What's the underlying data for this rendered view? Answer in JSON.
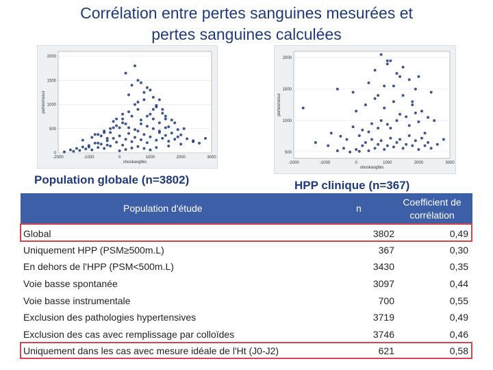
{
  "title_line1": "Corrélation entre pertes sanguines mesurées et",
  "title_line2": "pertes sanguines calculées",
  "captions": {
    "left": "Population globale (n=3802)",
    "right": "HPP clinique (n=367)"
  },
  "table": {
    "headers": {
      "population": "Population d'étude",
      "n": "n",
      "coef_line1": "Coefficient de",
      "coef_line2": "corrélation"
    },
    "rows": [
      {
        "label": "Global",
        "n": "3802",
        "coef": "0,49"
      },
      {
        "label": "Uniquement HPP (PSM≥500m.L)",
        "n": "367",
        "coef": "0,30"
      },
      {
        "label": "En dehors de l'HPP (PSM<500m.L)",
        "n": "3430",
        "coef": "0,35"
      },
      {
        "label": "Voie basse spontanée",
        "n": "3097",
        "coef": "0,44"
      },
      {
        "label": "Voie basse instrumentale",
        "n": "700",
        "coef": "0,55"
      },
      {
        "label": "Exclusion des pathologies hypertensives",
        "n": "3719",
        "coef": "0,49"
      },
      {
        "label": "Exclusion des cas avec remplissage par colloïdes",
        "n": "3746",
        "coef": "0,46"
      },
      {
        "label": "Uniquement dans les cas avec mesure idéale de l'Ht (J0-J2)",
        "n": "621",
        "coef": "0,58"
      }
    ]
  },
  "chart_data": [
    {
      "type": "scatter",
      "title": "",
      "xlabel": "shookavglbis",
      "ylabel": "pertesmesur",
      "xlim": [
        -2000,
        3000
      ],
      "ylim": [
        0,
        2100
      ],
      "xticks": [
        "-2000",
        "-1000",
        "0",
        "1000",
        "2000",
        "3000"
      ],
      "yticks": [
        "0",
        "500",
        "1000",
        "1500",
        "2000"
      ],
      "point_color": "#1f3a7a",
      "x": [
        -1800,
        -1600,
        -1500,
        -1400,
        -1300,
        -1200,
        -1100,
        -1000,
        -900,
        -800,
        -700,
        -600,
        -500,
        -400,
        -300,
        -200,
        -100,
        0,
        100,
        200,
        300,
        400,
        500,
        600,
        700,
        800,
        900,
        1000,
        1100,
        1200,
        1300,
        1400,
        1500,
        1600,
        1700,
        1800,
        1900,
        2000,
        2200,
        2400,
        2600,
        -1200,
        -900,
        -700,
        -500,
        -300,
        -100,
        100,
        300,
        500,
        700,
        900,
        1100,
        1300,
        1500,
        -800,
        -500,
        -200,
        100,
        400,
        700,
        1000,
        1300,
        1600,
        1900,
        -400,
        0,
        300,
        600,
        900,
        1200,
        1500,
        1800,
        2100,
        -300,
        200,
        500,
        800,
        1100,
        1400,
        1700,
        -100,
        300,
        600,
        900,
        1200,
        1500,
        400,
        800,
        1100,
        1400,
        600,
        1000,
        1300,
        200,
        700,
        -600,
        -200,
        100,
        500,
        -1000,
        -700,
        -400,
        0,
        200,
        400,
        600,
        800,
        1000,
        1200,
        1600,
        2000,
        2400,
        2800
      ],
      "y": [
        20,
        60,
        30,
        90,
        50,
        120,
        80,
        150,
        60,
        200,
        110,
        180,
        90,
        250,
        140,
        300,
        220,
        350,
        160,
        280,
        400,
        230,
        320,
        450,
        270,
        380,
        210,
        330,
        500,
        260,
        420,
        300,
        360,
        240,
        410,
        280,
        330,
        370,
        290,
        250,
        200,
        260,
        320,
        380,
        450,
        500,
        560,
        620,
        520,
        480,
        600,
        550,
        700,
        450,
        520,
        380,
        420,
        650,
        700,
        760,
        680,
        800,
        620,
        540,
        480,
        300,
        520,
        850,
        900,
        760,
        950,
        700,
        620,
        500,
        420,
        600,
        1000,
        1100,
        900,
        820,
        680,
        700,
        1200,
        1050,
        1350,
        980,
        760,
        1400,
        1250,
        1150,
        900,
        1500,
        1300,
        1100,
        1650,
        1450,
        350,
        520,
        800,
        1800,
        120,
        200,
        160,
        40,
        70,
        100,
        130,
        90,
        60,
        110,
        140,
        180,
        230,
        300
      ]
    },
    {
      "type": "scatter",
      "title": "",
      "xlabel": "shookavglbis",
      "ylabel": "pertesmesur",
      "xlim": [
        -2000,
        3000
      ],
      "ylim": [
        400,
        2100
      ],
      "xticks": [
        "-2000",
        "-1000",
        "0",
        "1000",
        "2000",
        "3000"
      ],
      "yticks": [
        "500",
        "1000",
        "1500",
        "2000"
      ],
      "point_color": "#1f3a7a",
      "x": [
        -1700,
        -1300,
        -900,
        -600,
        -400,
        -200,
        0,
        100,
        200,
        300,
        400,
        500,
        600,
        700,
        800,
        900,
        1000,
        1100,
        1200,
        1300,
        1400,
        1500,
        1600,
        1700,
        1800,
        1900,
        2000,
        2100,
        2200,
        2300,
        2400,
        2600,
        2800,
        -800,
        -500,
        -100,
        200,
        500,
        800,
        1100,
        1400,
        1700,
        2000,
        2300,
        -300,
        100,
        400,
        700,
        1000,
        1300,
        1600,
        1900,
        2200,
        0,
        300,
        600,
        900,
        1200,
        1500,
        1800,
        2100,
        2500,
        -600,
        -100,
        400,
        900,
        1400,
        1900,
        2400,
        600,
        1000,
        1300,
        1700,
        800,
        1100,
        1500,
        2000,
        700,
        1200,
        1800,
        1000
      ],
      "y": [
        1200,
        650,
        600,
        520,
        560,
        500,
        540,
        510,
        600,
        650,
        520,
        700,
        560,
        620,
        680,
        540,
        600,
        720,
        580,
        650,
        700,
        560,
        620,
        760,
        600,
        680,
        540,
        720,
        600,
        650,
        560,
        620,
        700,
        800,
        750,
        900,
        850,
        950,
        1000,
        880,
        1100,
        920,
        980,
        1050,
        700,
        760,
        820,
        880,
        940,
        1000,
        1060,
        1120,
        800,
        1150,
        1250,
        1350,
        1200,
        1300,
        1400,
        1250,
        1150,
        1000,
        1500,
        1450,
        1600,
        1550,
        1700,
        1500,
        1450,
        1800,
        1900,
        1750,
        1650,
        2050,
        1950,
        1850,
        1700,
        1400,
        1550,
        1300,
        1950
      ]
    }
  ]
}
